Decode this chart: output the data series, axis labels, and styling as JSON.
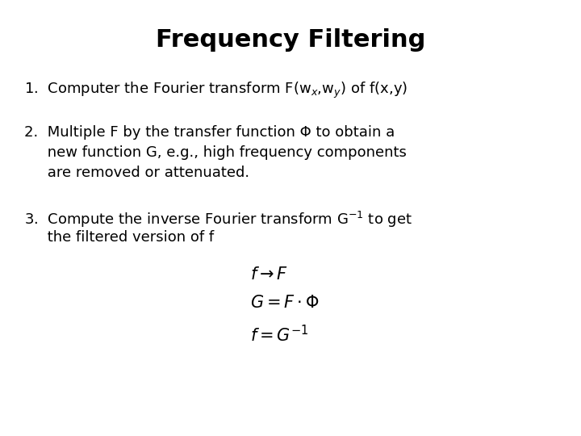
{
  "title": "Frequency Filtering",
  "title_fontsize": 22,
  "title_fontweight": "bold",
  "background_color": "#ffffff",
  "text_color": "#000000",
  "body_fontsize": 13,
  "formula_fontsize": 15,
  "item1": "1.  Computer the Fourier transform F(w$_x$,w$_y$) of f(x,y)",
  "item2_line1": "2.  Multiple F by the transfer function Φ to obtain a",
  "item2_line2": "     new function G, e.g., high frequency components",
  "item2_line3": "     are removed or attenuated.",
  "item3_line1": "3.  Compute the inverse Fourier transform G$^{-1}$ to get",
  "item3_line2": "     the filtered version of f",
  "formula1": "$f \\rightarrow F$",
  "formula2": "$G = F \\cdot \\Phi$",
  "formula3": "$f = G^{-1}$"
}
